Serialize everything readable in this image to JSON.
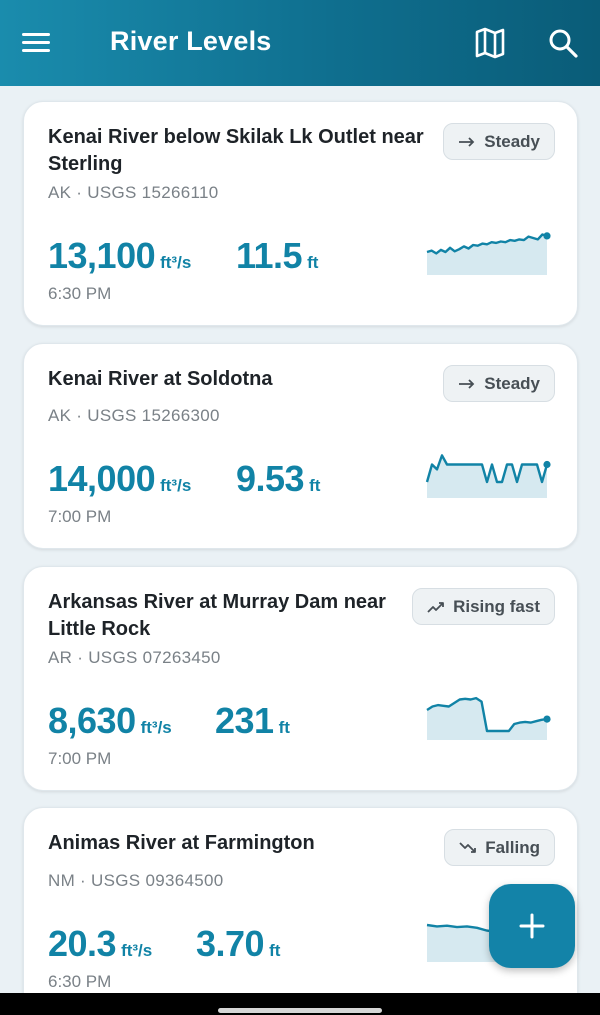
{
  "app": {
    "title": "River Levels"
  },
  "icons": {
    "menu": "menu-icon",
    "map": "map-icon",
    "search": "search-icon",
    "add": "plus-icon"
  },
  "colors": {
    "accent": "#1183a6",
    "appbar": "#0f6f8f",
    "spark_fill": "#d6e9f0"
  },
  "gauges": [
    {
      "name": "Kenai River below Skilak Lk Outlet near Sterling",
      "meta": "AK · USGS 15266110",
      "trend": "Steady",
      "trend_icon": "arrow-right-icon",
      "flow": "13,100",
      "flow_unit": "ft³/s",
      "stage": "11.5",
      "stage_unit": "ft",
      "time": "6:30 PM",
      "spark": [
        30,
        32,
        28,
        33,
        30,
        36,
        31,
        34,
        38,
        35,
        40,
        39,
        42,
        41,
        44,
        43,
        45,
        44,
        47,
        46,
        48,
        47,
        52,
        50,
        48,
        55,
        53
      ]
    },
    {
      "name": "Kenai River at Soldotna",
      "meta": "AK · USGS 15266300",
      "trend": "Steady",
      "trend_icon": "arrow-right-icon",
      "flow": "14,000",
      "flow_unit": "ft³/s",
      "stage": "9.53",
      "stage_unit": "ft",
      "time": "7:00 PM",
      "spark": [
        20,
        45,
        38,
        58,
        45,
        45,
        45,
        45,
        45,
        45,
        45,
        45,
        20,
        45,
        20,
        20,
        45,
        45,
        20,
        45,
        45,
        45,
        45,
        20,
        45
      ]
    },
    {
      "name": "Arkansas River at Murray Dam near Little Rock",
      "meta": "AR · USGS 07263450",
      "trend": "Rising fast",
      "trend_icon": "trending-up-icon",
      "flow": "8,630",
      "flow_unit": "ft³/s",
      "stage": "231",
      "stage_unit": "ft",
      "time": "7:00 PM",
      "spark": [
        40,
        45,
        47,
        46,
        45,
        50,
        55,
        56,
        55,
        57,
        52,
        10,
        10,
        10,
        10,
        10,
        20,
        22,
        23,
        22,
        24,
        26,
        27
      ]
    },
    {
      "name": "Animas River at Farmington",
      "meta": "NM · USGS 09364500",
      "trend": "Falling",
      "trend_icon": "trending-down-icon",
      "flow": "20.3",
      "flow_unit": "ft³/s",
      "stage": "3.70",
      "stage_unit": "ft",
      "time": "6:30 PM",
      "spark": [
        50,
        48,
        49,
        47,
        48,
        46,
        42,
        40,
        36,
        33,
        30,
        28,
        27
      ]
    }
  ]
}
